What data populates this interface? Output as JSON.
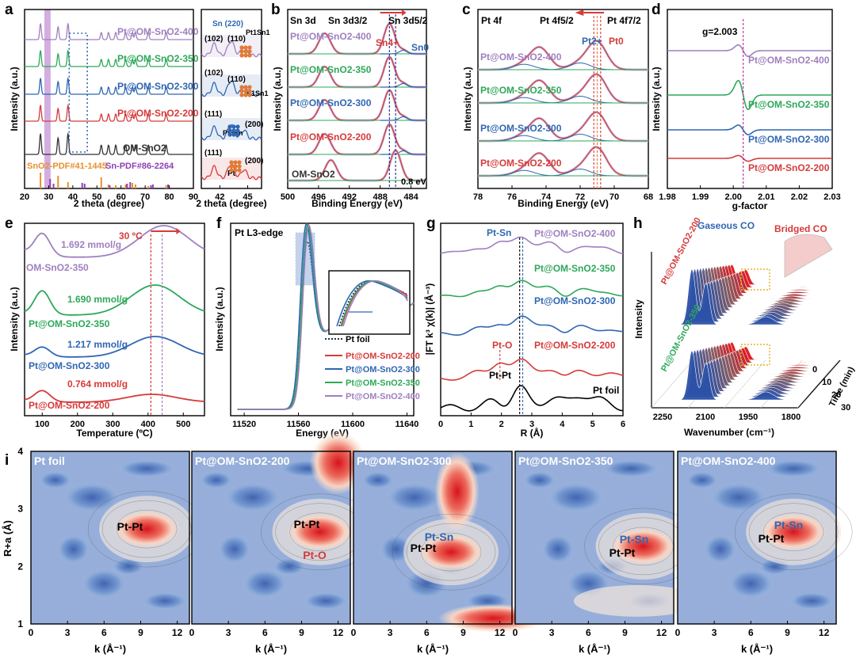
{
  "chart_data": [
    {
      "panel": "a",
      "type": "line",
      "title": "",
      "xlabel": "2 theta (degree)",
      "ylabel": "Intensity (a.u.)",
      "xlim": [
        20,
        90
      ],
      "xticks": [
        "20",
        "30",
        "40",
        "50",
        "60",
        "70",
        "80",
        "90"
      ],
      "series": [
        {
          "name": "Pt@OM-SnO2-400",
          "color": "#a07fbf"
        },
        {
          "name": "Pt@OM-SnO2-350",
          "color": "#2ea85a"
        },
        {
          "name": "Pt@OM-SnO2-300",
          "color": "#2f66b3"
        },
        {
          "name": "Pt@OM-SnO2-200",
          "color": "#d63a3a"
        },
        {
          "name": "OM-SnO2",
          "color": "#333333"
        }
      ],
      "peaks": [
        26.6,
        33.9,
        38.0,
        51.8,
        54.8,
        57.8,
        61.9,
        64.7,
        66.0,
        71.3,
        78.7
      ],
      "references": [
        {
          "label": "SnO2-PDF#41-1445",
          "color": "#e8902c"
        },
        {
          "label": "Sn-PDF#86-2264",
          "color": "#8e3fb5"
        }
      ]
    },
    {
      "panel": "a-inset",
      "type": "line",
      "xlabel": "2 theta (degree)",
      "xticks": [
        "42",
        "45"
      ],
      "xlim": [
        40,
        46.5
      ],
      "labels": [
        "Sn (220)",
        "(102)",
        "(110)",
        "Pt1Sn1",
        "(102)",
        "(110)",
        "Pt1Sn1",
        "(111)",
        "(200)",
        "Pt3Sn",
        "(111)",
        "(200)",
        "Pt"
      ]
    },
    {
      "panel": "b",
      "type": "line",
      "title": "Sn 3d",
      "xlabel": "Binding Energy (eV)",
      "ylabel": "Intensity (a.u.)",
      "xlim": [
        500,
        482
      ],
      "xticks": [
        "500",
        "496",
        "492",
        "488",
        "484"
      ],
      "peak_labels": [
        "Sn 3d3/2",
        "Sn 3d5/2",
        "Sn4+",
        "Sn0",
        "0.8 eV"
      ],
      "series": [
        {
          "name": "Pt@OM-SnO2-400",
          "color": "#a07fbf",
          "sn3d52": 486.8,
          "sn3d32": 495.2
        },
        {
          "name": "Pt@OM-SnO2-350",
          "color": "#2ea85a",
          "sn3d52": 486.8,
          "sn3d32": 495.2
        },
        {
          "name": "Pt@OM-SnO2-300",
          "color": "#2f66b3",
          "sn3d52": 486.8,
          "sn3d32": 495.2
        },
        {
          "name": "Pt@OM-SnO2-200",
          "color": "#d63a3a",
          "sn3d52": 486.8,
          "sn3d32": 495.2
        },
        {
          "name": "OM-SnO2",
          "color": "#333333",
          "sn3d52": 486.0,
          "sn3d32": 494.4
        }
      ]
    },
    {
      "panel": "c",
      "type": "line",
      "title": "Pt 4f",
      "xlabel": "Binding Energy (eV)",
      "ylabel": "Intensity (a.u.)",
      "xlim": [
        78,
        68
      ],
      "xticks": [
        "78",
        "76",
        "74",
        "72",
        "70",
        "68"
      ],
      "peak_labels": [
        "Pt 4f5/2",
        "Pt 4f7/2",
        "Pt2+",
        "Pt0"
      ],
      "series": [
        {
          "name": "Pt@OM-SnO2-400",
          "color": "#a07fbf"
        },
        {
          "name": "Pt@OM-SnO2-350",
          "color": "#2ea85a"
        },
        {
          "name": "Pt@OM-SnO2-300",
          "color": "#2f66b3"
        },
        {
          "name": "Pt@OM-SnO2-200",
          "color": "#d63a3a"
        }
      ]
    },
    {
      "panel": "d",
      "type": "line",
      "title": "",
      "xlabel": "g-factor",
      "ylabel": "Intensity (a.u.)",
      "xlim": [
        1.98,
        2.03
      ],
      "xticks": [
        "1.98",
        "1.99",
        "2.00",
        "2.01",
        "2.02",
        "2.03"
      ],
      "annotation": "g=2.003",
      "g_value": 2.003,
      "series": [
        {
          "name": "Pt@OM-SnO2-400",
          "color": "#a07fbf"
        },
        {
          "name": "Pt@OM-SnO2-350",
          "color": "#2ea85a"
        },
        {
          "name": "Pt@OM-SnO2-300",
          "color": "#2f66b3"
        },
        {
          "name": "Pt@OM-SnO2-200",
          "color": "#d63a3a"
        }
      ]
    },
    {
      "panel": "e",
      "type": "line",
      "title": "",
      "xlabel": "Temperature (ºC)",
      "ylabel": "Intensity (a.u.)",
      "xlim": [
        50,
        560
      ],
      "xticks": [
        "100",
        "200",
        "300",
        "400",
        "500"
      ],
      "annotation": "30 ºC",
      "series": [
        {
          "name": "OM-SnO2-350",
          "color": "#a07fbf",
          "amount": "1.692 mmol/g",
          "peak_T": 445
        },
        {
          "name": "Pt@OM-SnO2-350",
          "color": "#2ea85a",
          "amount": "1.690 mmol/g",
          "peak_T": 420
        },
        {
          "name": "Pt@OM-SnO2-300",
          "color": "#2f66b3",
          "amount": "1.217 mmol/g",
          "peak_T": 420
        },
        {
          "name": "Pt@OM-SnO2-200",
          "color": "#d63a3a",
          "amount": "0.764 mmol/g",
          "peak_T": 410
        }
      ]
    },
    {
      "panel": "f",
      "type": "line",
      "title": "Pt L3-edge",
      "xlabel": "Energy (eV)",
      "ylabel": "Intensity (a.u.)",
      "xlim": [
        11510,
        11645
      ],
      "xticks": [
        "11520",
        "11560",
        "11600",
        "11640"
      ],
      "series": [
        {
          "name": "Pt foil",
          "color": "#1f2f4f",
          "style": "dotted"
        },
        {
          "name": "Pt@OM-SnO2-200",
          "color": "#d63a3a"
        },
        {
          "name": "Pt@OM-SnO2-300",
          "color": "#2f66b3"
        },
        {
          "name": "Pt@OM-SnO2-350",
          "color": "#2ea85a"
        },
        {
          "name": "Pt@OM-SnO2-400",
          "color": "#a07fbf"
        }
      ]
    },
    {
      "panel": "g",
      "type": "line",
      "title": "",
      "xlabel": "R (Å)",
      "ylabel": "|FT k³ χ(k)| (Å⁻³)",
      "xlim": [
        0,
        6
      ],
      "xticks": [
        "0",
        "1",
        "2",
        "3",
        "4",
        "5",
        "6"
      ],
      "annotations": [
        "Pt-Sn",
        "Pt-O",
        "Pt-Pt"
      ],
      "series": [
        {
          "name": "Pt@OM-SnO2-400",
          "color": "#a07fbf"
        },
        {
          "name": "Pt@OM-SnO2-350",
          "color": "#2ea85a"
        },
        {
          "name": "Pt@OM-SnO2-300",
          "color": "#2f66b3"
        },
        {
          "name": "Pt@OM-SnO2-200",
          "color": "#d63a3a"
        },
        {
          "name": "Pt foil",
          "color": "#000000"
        }
      ]
    },
    {
      "panel": "h",
      "type": "area",
      "title": "",
      "xlabel": "Wavenumber (cm⁻¹)",
      "ylabel": "Intensity",
      "zlabel": "Time (min)",
      "zticks": [
        "0",
        "10",
        "20",
        "30"
      ],
      "xlim": [
        2300,
        1800
      ],
      "xticks": [
        "2250",
        "2100",
        "1950",
        "1800"
      ],
      "bands": [
        "Gaseous CO",
        "Bridged CO"
      ],
      "samples": [
        "Pt@OM-SnO2-200",
        "Pt@OM-SnO2-350"
      ]
    },
    {
      "panel": "i",
      "type": "heatmap",
      "title": "",
      "xlabel": "k (Å⁻¹)",
      "ylabel": "R+a (Å)",
      "xlim": [
        0,
        13
      ],
      "ylim": [
        1,
        4
      ],
      "xticks": [
        "0",
        "3",
        "6",
        "9",
        "12"
      ],
      "yticks": [
        "1",
        "2",
        "3",
        "4"
      ],
      "maps": [
        {
          "name": "Pt foil",
          "labels": [
            "Pt-Pt"
          ],
          "hotspot": {
            "k": 9.5,
            "R": 2.65
          }
        },
        {
          "name": "Pt@OM-SnO2-200",
          "labels": [
            "Pt-Pt",
            "Pt-O"
          ],
          "hotspot": {
            "k": 10.5,
            "R": 2.6
          }
        },
        {
          "name": "Pt@OM-SnO2-300",
          "labels": [
            "Pt-Sn",
            "Pt-Pt"
          ],
          "hotspot": {
            "k": 8.0,
            "R": 2.25
          }
        },
        {
          "name": "Pt@OM-SnO2-350",
          "labels": [
            "Pt-Sn",
            "Pt-Pt"
          ],
          "hotspot": {
            "k": 10.5,
            "R": 2.35
          }
        },
        {
          "name": "Pt@OM-SnO2-400",
          "labels": [
            "Pt-Sn",
            "Pt-Pt"
          ],
          "hotspot": {
            "k": 9.5,
            "R": 2.6
          }
        }
      ]
    }
  ],
  "panel_letters": [
    "a",
    "b",
    "c",
    "d",
    "e",
    "f",
    "g",
    "h",
    "i"
  ],
  "colors": {
    "s400": "#a07fbf",
    "s350": "#2ea85a",
    "s300": "#2f66b3",
    "s200": "#d63a3a",
    "ref": "#333333",
    "foil": "#000000"
  }
}
